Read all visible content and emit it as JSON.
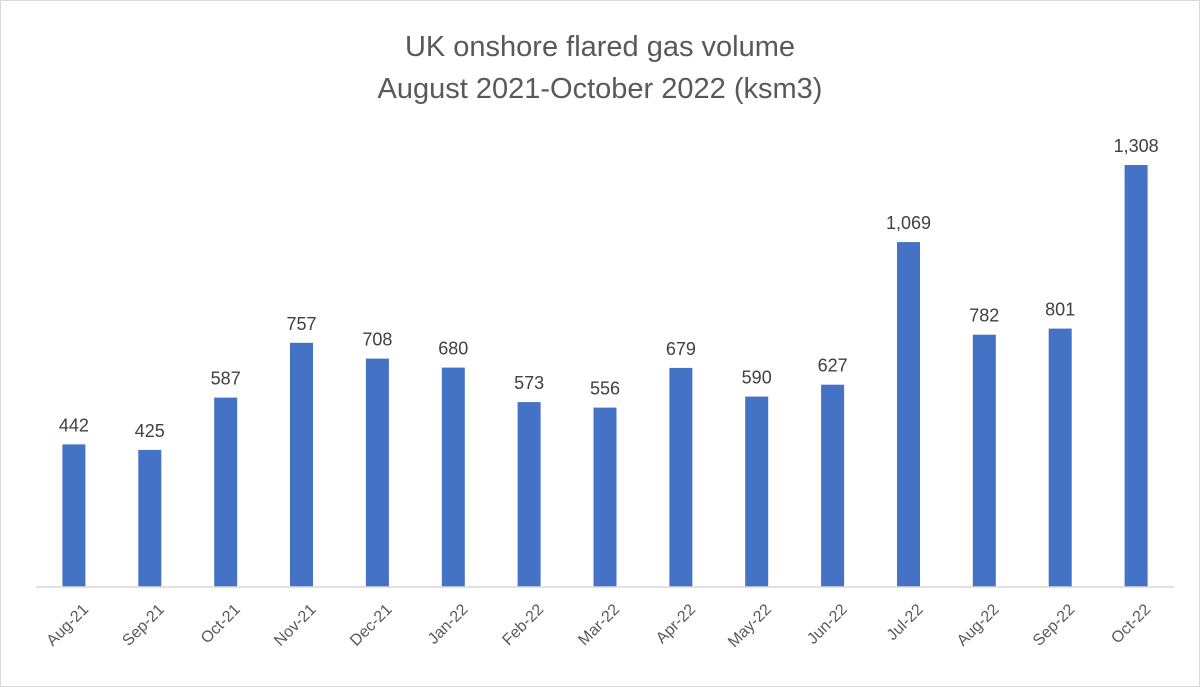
{
  "chart_data": {
    "type": "bar",
    "title": "UK onshore flared gas volume",
    "subtitle": "August 2021-October 2022 (ksm3)",
    "categories": [
      "Aug-21",
      "Sep-21",
      "Oct-21",
      "Nov-21",
      "Dec-21",
      "Jan-22",
      "Feb-22",
      "Mar-22",
      "Apr-22",
      "May-22",
      "Jun-22",
      "Jul-22",
      "Aug-22",
      "Sep-22",
      "Oct-22"
    ],
    "values": [
      442,
      425,
      587,
      757,
      708,
      680,
      573,
      556,
      679,
      590,
      627,
      1069,
      782,
      801,
      1308
    ],
    "value_labels": [
      "442",
      "425",
      "587",
      "757",
      "708",
      "680",
      "573",
      "556",
      "679",
      "590",
      "627",
      "1,069",
      "782",
      "801",
      "1,308"
    ],
    "ylim": [
      0,
      1308
    ],
    "grid": false,
    "legend": "none",
    "bar_color": "#4472c4"
  }
}
